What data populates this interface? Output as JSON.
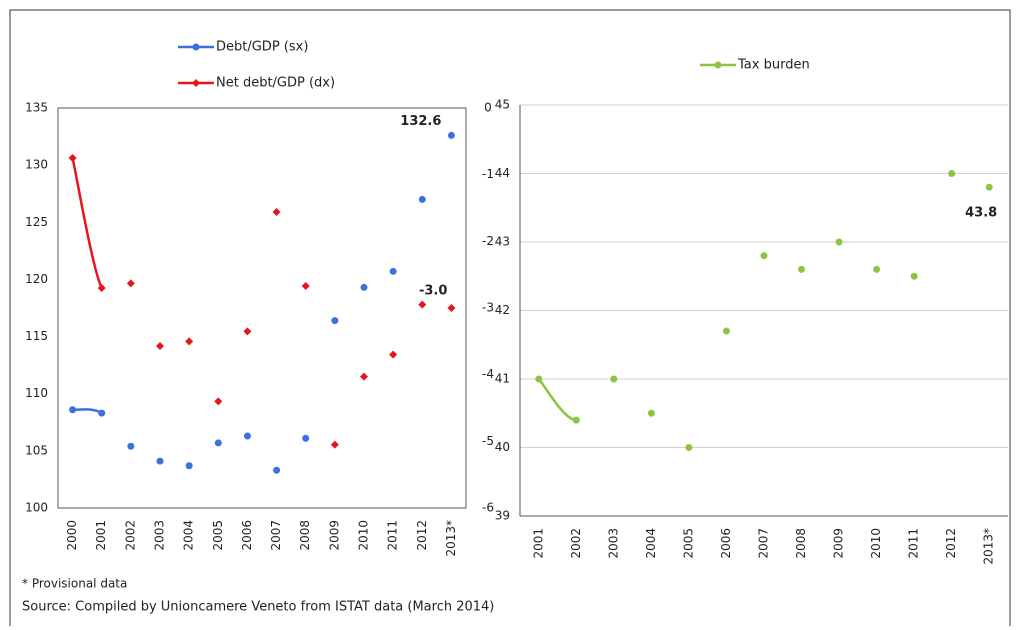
{
  "chart_data": [
    {
      "type": "line",
      "categories": [
        "2000",
        "2001",
        "2002",
        "2003",
        "2004",
        "2005",
        "2006",
        "2007",
        "2008",
        "2009",
        "2010",
        "2011",
        "2012",
        "2013*"
      ],
      "series": [
        {
          "name": "Debt/GDP (sx)",
          "color": "#3d6fe0",
          "marker": "circle",
          "values": [
            108.6,
            108.3,
            105.4,
            104.1,
            103.7,
            105.7,
            106.3,
            103.3,
            106.1,
            116.4,
            119.3,
            120.7,
            127.0,
            132.6
          ],
          "value_labels": [
            null,
            null,
            null,
            null,
            null,
            null,
            null,
            null,
            null,
            null,
            null,
            null,
            null,
            "132.6"
          ]
        },
        {
          "name": "Net debt/GDP (dx)",
          "color": "#e8141b",
          "marker": "diamond",
          "axis": "y2",
          "values": [
            -0.75,
            -2.7,
            -2.63,
            -3.57,
            -3.5,
            -4.4,
            -3.35,
            -1.56,
            -2.67,
            -5.05,
            -4.03,
            -3.7,
            -2.95,
            -3.0
          ],
          "value_labels": [
            null,
            null,
            null,
            null,
            null,
            null,
            null,
            null,
            null,
            null,
            null,
            null,
            null,
            "-3.0"
          ]
        }
      ],
      "ylim": [
        100,
        135
      ],
      "yticks": [
        100,
        105,
        110,
        115,
        120,
        125,
        130,
        135
      ],
      "y2lim": [
        -6,
        0
      ],
      "y2ticks": [
        -6,
        -5,
        -4,
        -3,
        -2,
        -1,
        0
      ],
      "grid": false,
      "border": true
    },
    {
      "type": "line",
      "categories": [
        "2001",
        "2002",
        "2003",
        "2004",
        "2005",
        "2006",
        "2007",
        "2008",
        "2009",
        "2010",
        "2011",
        "2012",
        "2013*"
      ],
      "series": [
        {
          "name": "Tax burden",
          "color": "#8cc63f",
          "marker": "circle",
          "values": [
            41.0,
            40.4,
            41.0,
            40.5,
            40.0,
            41.7,
            42.8,
            42.6,
            43.0,
            42.6,
            42.5,
            44.0,
            43.8
          ],
          "value_labels": [
            null,
            null,
            null,
            null,
            null,
            null,
            null,
            null,
            null,
            null,
            null,
            null,
            "43.8"
          ]
        }
      ],
      "ylim": [
        39,
        45
      ],
      "yticks": [
        39,
        40,
        41,
        42,
        43,
        44,
        45
      ],
      "grid": true,
      "border": false
    }
  ],
  "footnote": "* Provisional data",
  "source": "Source: Compiled by Unioncamere Veneto from ISTAT data (March 2014)"
}
